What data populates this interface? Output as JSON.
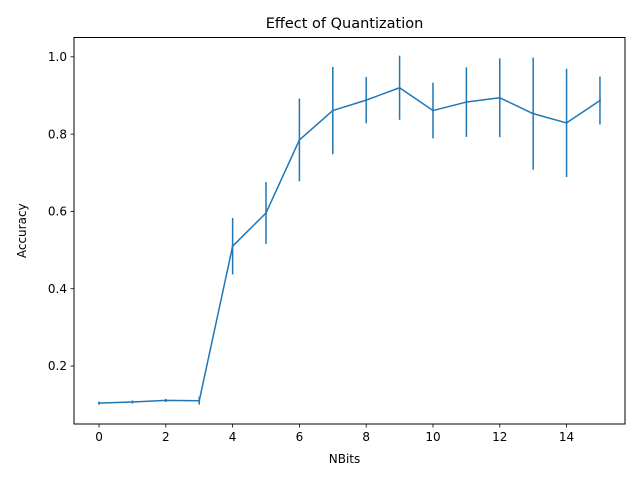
{
  "chart_data": {
    "type": "line",
    "title": "Effect of Quantization",
    "xlabel": "NBits",
    "ylabel": "Accuracy",
    "xlim": [
      -0.75,
      15.75
    ],
    "ylim": [
      0.05,
      1.05
    ],
    "xticks": [
      0,
      2,
      4,
      6,
      8,
      10,
      12,
      14
    ],
    "yticks": [
      0.2,
      0.4,
      0.6,
      0.8,
      1.0
    ],
    "ytick_labels": [
      "0.2",
      "0.4",
      "0.6",
      "0.8",
      "1.0"
    ],
    "grid": false,
    "legend": "none",
    "line_color": "#1f77b4",
    "series": [
      {
        "x": [
          0,
          1,
          2,
          3,
          4,
          5,
          6,
          7,
          8,
          9,
          10,
          11,
          12,
          13,
          14,
          15
        ],
        "values": [
          0.104,
          0.107,
          0.111,
          0.11,
          0.51,
          0.596,
          0.785,
          0.861,
          0.888,
          0.92,
          0.861,
          0.883,
          0.894,
          0.853,
          0.829,
          0.887
        ],
        "error": [
          0.004,
          0.004,
          0.004,
          0.01,
          0.073,
          0.08,
          0.107,
          0.113,
          0.06,
          0.083,
          0.072,
          0.09,
          0.102,
          0.145,
          0.14,
          0.062
        ]
      }
    ]
  }
}
